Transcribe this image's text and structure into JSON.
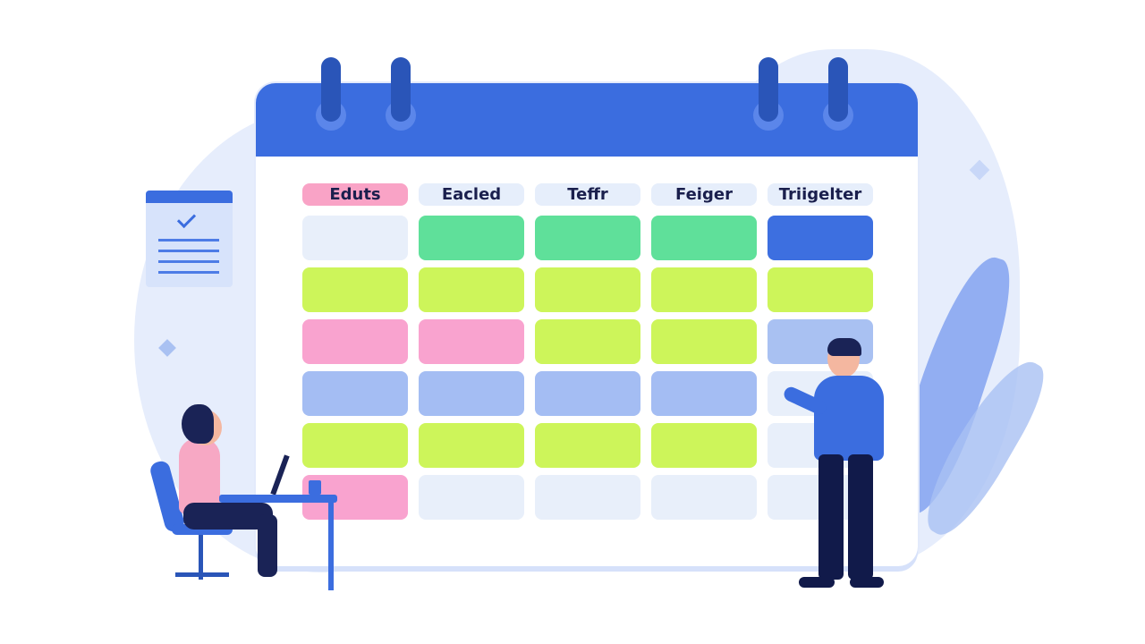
{
  "calendar": {
    "headers": [
      {
        "label": "Eduts",
        "color": "#f9a3c6"
      },
      {
        "label": "Eacled",
        "color": "#e6eefb"
      },
      {
        "label": "Teffr",
        "color": "#e6eefb"
      },
      {
        "label": "Feiger",
        "color": "#e6eefb"
      },
      {
        "label": "Triigelter",
        "color": "#e6eefb"
      }
    ],
    "rows": [
      [
        "#e8effa",
        "#5fe09a",
        "#5fe09a",
        "#5fe09a",
        "#3d6fe0"
      ],
      [
        "#cdf55a",
        "#cdf55a",
        "#cdf55a",
        "#cdf55a",
        "#cdf55a"
      ],
      [
        "#f9a3cf",
        "#f9a3cf",
        "#cdf55a",
        "#cdf55a",
        "#a9c1f2"
      ],
      [
        "#a4bdf3",
        "#a4bdf3",
        "#a4bdf3",
        "#a4bdf3",
        "#e8effa"
      ],
      [
        "#cdf55a",
        "#cdf55a",
        "#cdf55a",
        "#cdf55a",
        "#e8effa"
      ],
      [
        "#f9a3cf",
        "#e8effa",
        "#e8effa",
        "#e8effa",
        "#e8effa"
      ]
    ]
  },
  "colors": {
    "accent": "#3b6ddf",
    "ring": "#2a55b8",
    "background_blob": "#e6edfc"
  }
}
